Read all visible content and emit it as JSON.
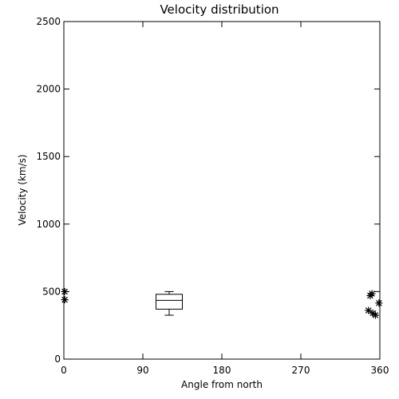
{
  "chart_data": {
    "type": "scatter",
    "title": "Velocity distribution",
    "xlabel": "Angle from north",
    "ylabel": "Velocity (km/s)",
    "xlim": [
      0,
      360
    ],
    "ylim": [
      0,
      2500
    ],
    "xticks": [
      0,
      90,
      180,
      270,
      360
    ],
    "yticks": [
      0,
      500,
      1000,
      1500,
      2000,
      2500
    ],
    "grid": false,
    "marker": "asterisk",
    "points": [
      {
        "x": 1,
        "y": 500
      },
      {
        "x": 1,
        "y": 440
      },
      {
        "x": 349,
        "y": 470
      },
      {
        "x": 351,
        "y": 485
      },
      {
        "x": 347,
        "y": 360
      },
      {
        "x": 352,
        "y": 340
      },
      {
        "x": 355,
        "y": 325
      },
      {
        "x": 359,
        "y": 415
      }
    ],
    "boxplot": {
      "x": 120,
      "width": 30,
      "min": 325,
      "q1": 370,
      "median": 435,
      "q3": 480,
      "max": 500
    }
  }
}
